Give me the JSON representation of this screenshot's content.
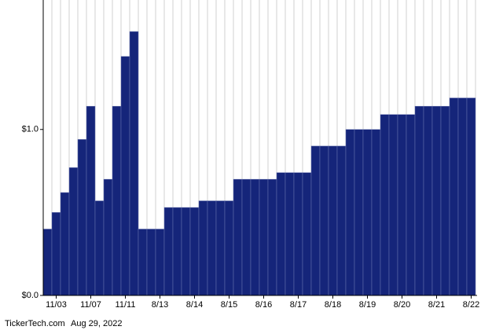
{
  "chart_data": {
    "type": "bar",
    "categories": [
      null,
      "11/03",
      null,
      null,
      null,
      "11/07",
      null,
      null,
      null,
      "11/11",
      null,
      null,
      null,
      "8/13",
      null,
      null,
      null,
      "8/14",
      null,
      null,
      null,
      "8/15",
      null,
      null,
      null,
      "8/16",
      null,
      null,
      null,
      "8/17",
      null,
      null,
      null,
      "8/18",
      null,
      null,
      null,
      "8/19",
      null,
      null,
      null,
      "8/20",
      null,
      null,
      null,
      "8/21",
      null,
      null,
      null,
      "8/22"
    ],
    "values": [
      0.4,
      0.5,
      0.62,
      0.77,
      0.94,
      1.14,
      0.57,
      0.7,
      1.14,
      1.44,
      1.59,
      0.4,
      0.4,
      0.4,
      0.53,
      0.53,
      0.53,
      0.53,
      0.57,
      0.57,
      0.57,
      0.57,
      0.7,
      0.7,
      0.7,
      0.7,
      0.7,
      0.74,
      0.74,
      0.74,
      0.74,
      0.9,
      0.9,
      0.9,
      0.9,
      1.0,
      1.0,
      1.0,
      1.0,
      1.09,
      1.09,
      1.09,
      1.09,
      1.14,
      1.14,
      1.14,
      1.14,
      1.19,
      1.19,
      1.19
    ],
    "color": "#15257a",
    "ylim": [
      0,
      1.78
    ],
    "yticks": [
      {
        "value": 0,
        "label": "$0.0"
      },
      {
        "value": 1,
        "label": "$1.0"
      }
    ],
    "grid": true,
    "credit": "TickerTech.com",
    "credit_date": "Aug 29, 2022"
  }
}
